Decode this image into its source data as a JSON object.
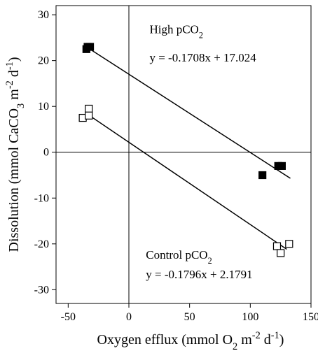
{
  "chart_data": {
    "type": "scatter",
    "xlabel": {
      "parts": [
        {
          "text": "Oxygen efflux (mmol O"
        },
        {
          "text": "2",
          "shift": "sub"
        },
        {
          "text": " m"
        },
        {
          "text": "-2",
          "shift": "super"
        },
        {
          "text": " d"
        },
        {
          "text": "-1",
          "shift": "super"
        },
        {
          "text": ")"
        }
      ]
    },
    "ylabel": {
      "parts": [
        {
          "text": "Dissolution (mmol CaCO"
        },
        {
          "text": "3",
          "shift": "sub"
        },
        {
          "text": " m"
        },
        {
          "text": "-2",
          "shift": "super"
        },
        {
          "text": " d"
        },
        {
          "text": "-1",
          "shift": "super"
        },
        {
          "text": ")"
        }
      ]
    },
    "xlim": [
      -60,
      150
    ],
    "ylim": [
      -33,
      32
    ],
    "xticks": [
      -50,
      0,
      50,
      100,
      150
    ],
    "yticks": [
      -30,
      -20,
      -10,
      0,
      10,
      20,
      30
    ],
    "zero_lines": true,
    "grid": false,
    "series": [
      {
        "marker": "filled-square",
        "color": "#000000",
        "points": [
          {
            "x": -35,
            "y": 22.5
          },
          {
            "x": -34,
            "y": 23
          },
          {
            "x": -32,
            "y": 23
          },
          {
            "x": 110,
            "y": -5
          },
          {
            "x": 123,
            "y": -3
          },
          {
            "x": 126,
            "y": -3
          }
        ],
        "fit": {
          "slope": -0.1708,
          "intercept": 17.024,
          "x_range": [
            -37,
            133
          ]
        }
      },
      {
        "marker": "open-square",
        "color": "#000000",
        "points": [
          {
            "x": -38,
            "y": 7.5
          },
          {
            "x": -33,
            "y": 9.5
          },
          {
            "x": -33,
            "y": 8
          },
          {
            "x": 122,
            "y": -20.5
          },
          {
            "x": 125,
            "y": -22
          },
          {
            "x": 132,
            "y": -20
          }
        ],
        "fit": {
          "slope": -0.1796,
          "intercept": 2.1791,
          "x_range": [
            -35,
            130
          ]
        }
      }
    ],
    "annotations": [
      {
        "name": "high-pco2-label",
        "parts": [
          {
            "text": "High pCO"
          },
          {
            "text": "2",
            "shift": "sub"
          }
        ],
        "x": 17,
        "y": 26
      },
      {
        "name": "high-pco2-equation",
        "parts": [
          {
            "text": "y = -0.1708x + 17.024"
          }
        ],
        "x": 17,
        "y": 19.8
      },
      {
        "name": "control-pco2-label",
        "parts": [
          {
            "text": "Control pCO"
          },
          {
            "text": "2",
            "shift": "sub"
          }
        ],
        "x": 14,
        "y": -23.2
      },
      {
        "name": "control-pco2-equation",
        "parts": [
          {
            "text": "y = -0.1796x + 2.1791"
          }
        ],
        "x": 14,
        "y": -27.5
      }
    ]
  }
}
